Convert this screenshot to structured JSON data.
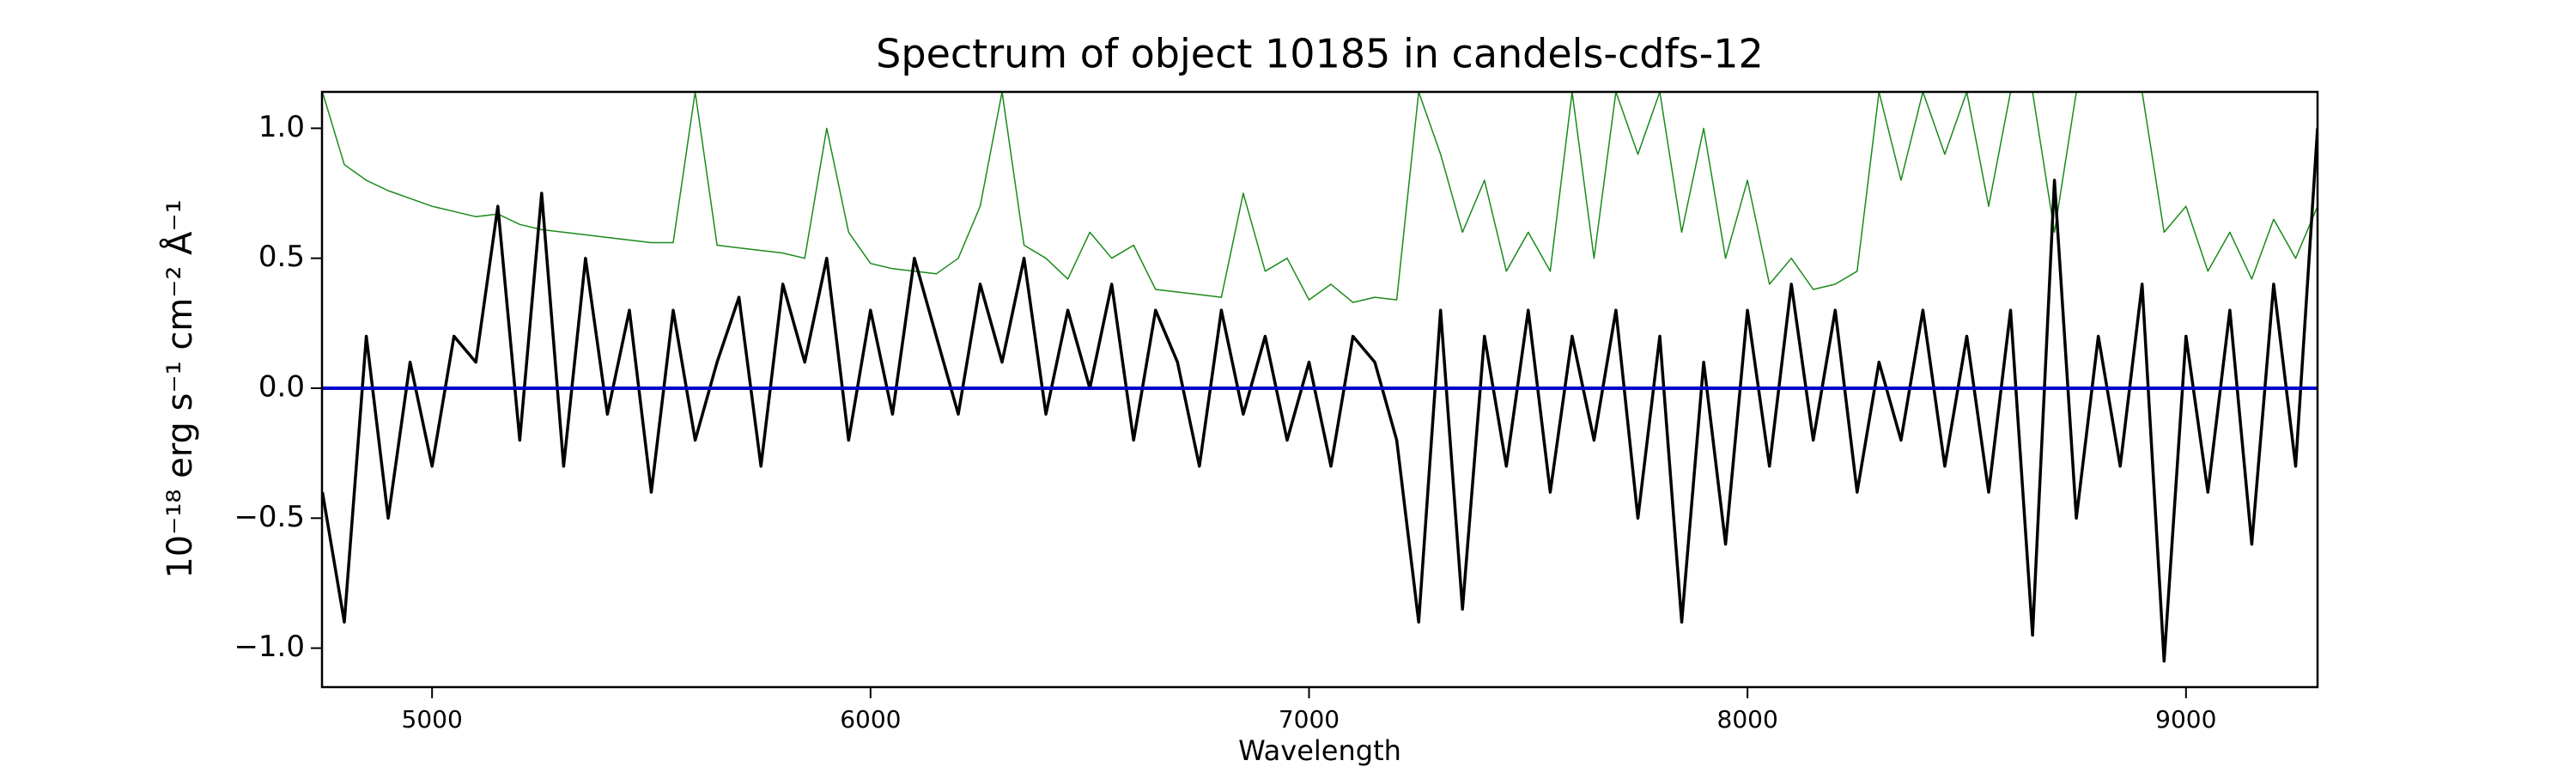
{
  "chart_data": {
    "type": "line",
    "title": "Spectrum of object 10185 in candels-cdfs-12",
    "xlabel": "Wavelength",
    "ylabel": "10⁻¹⁸ erg s⁻¹ cm⁻² Å⁻¹",
    "xlim": [
      4749,
      9300
    ],
    "ylim": [
      -1.15,
      1.14
    ],
    "xticks": [
      5000,
      6000,
      7000,
      8000,
      9000
    ],
    "yticks": [
      {
        "value": -1.0,
        "label": "−1.0"
      },
      {
        "value": -0.5,
        "label": "−0.5"
      },
      {
        "value": 0,
        "label": "0.0"
      },
      {
        "value": 0.5,
        "label": "0.5"
      },
      {
        "value": 1.0,
        "label": "1.0"
      }
    ],
    "x": [
      4750,
      4800,
      4850,
      4900,
      4950,
      5000,
      5050,
      5100,
      5150,
      5200,
      5250,
      5300,
      5350,
      5400,
      5450,
      5500,
      5550,
      5600,
      5650,
      5700,
      5750,
      5800,
      5850,
      5900,
      5950,
      6000,
      6050,
      6100,
      6150,
      6200,
      6250,
      6300,
      6350,
      6400,
      6450,
      6500,
      6550,
      6600,
      6650,
      6700,
      6750,
      6800,
      6850,
      6900,
      6950,
      7000,
      7050,
      7100,
      7150,
      7200,
      7250,
      7300,
      7350,
      7400,
      7450,
      7500,
      7550,
      7600,
      7650,
      7700,
      7750,
      7800,
      7850,
      7900,
      7950,
      8000,
      8050,
      8100,
      8150,
      8200,
      8250,
      8300,
      8350,
      8400,
      8450,
      8500,
      8550,
      8600,
      8650,
      8700,
      8750,
      8800,
      8850,
      8900,
      8950,
      9000,
      9050,
      9100,
      9150,
      9200,
      9250,
      9300
    ],
    "series": [
      {
        "color": "#1a8a1a",
        "width": 1.5,
        "values": [
          1.14,
          0.86,
          0.8,
          0.76,
          0.73,
          0.7,
          0.68,
          0.66,
          0.67,
          0.63,
          0.61,
          0.6,
          0.59,
          0.58,
          0.57,
          0.56,
          0.56,
          1.14,
          0.55,
          0.54,
          0.53,
          0.52,
          0.5,
          1.0,
          0.6,
          0.48,
          0.46,
          0.45,
          0.44,
          0.5,
          0.7,
          1.14,
          0.55,
          0.5,
          0.42,
          0.6,
          0.5,
          0.55,
          0.38,
          0.37,
          0.36,
          0.35,
          0.75,
          0.45,
          0.5,
          0.34,
          0.4,
          0.33,
          0.35,
          0.34,
          1.14,
          0.9,
          0.6,
          0.8,
          0.45,
          0.6,
          0.45,
          1.14,
          0.5,
          1.14,
          0.9,
          1.14,
          0.6,
          1.0,
          0.5,
          0.8,
          0.4,
          0.5,
          0.38,
          0.4,
          0.45,
          1.14,
          0.8,
          1.14,
          0.9,
          1.14,
          0.7,
          1.14,
          1.14,
          0.6,
          1.14,
          1.14,
          1.14,
          1.14,
          0.6,
          0.7,
          0.45,
          0.6,
          0.42,
          0.65,
          0.5,
          0.7
        ]
      },
      {
        "color": "#000000",
        "width": 3.5,
        "values": [
          -0.4,
          -0.9,
          0.2,
          -0.5,
          0.1,
          -0.3,
          0.2,
          0.1,
          0.7,
          -0.2,
          0.75,
          -0.3,
          0.5,
          -0.1,
          0.3,
          -0.4,
          0.3,
          -0.2,
          0.1,
          0.35,
          -0.3,
          0.4,
          0.1,
          0.5,
          -0.2,
          0.3,
          -0.1,
          0.5,
          0.2,
          -0.1,
          0.4,
          0.1,
          0.5,
          -0.1,
          0.3,
          0.0,
          0.4,
          -0.2,
          0.3,
          0.1,
          -0.3,
          0.3,
          -0.1,
          0.2,
          -0.2,
          0.1,
          -0.3,
          0.2,
          0.1,
          -0.2,
          -0.9,
          0.3,
          -0.85,
          0.2,
          -0.3,
          0.3,
          -0.4,
          0.2,
          -0.2,
          0.3,
          -0.5,
          0.2,
          -0.9,
          0.1,
          -0.6,
          0.3,
          -0.3,
          0.4,
          -0.2,
          0.3,
          -0.4,
          0.1,
          -0.2,
          0.3,
          -0.3,
          0.2,
          -0.4,
          0.3,
          -0.95,
          0.8,
          -0.5,
          0.2,
          -0.3,
          0.4,
          -1.05,
          0.2,
          -0.4,
          0.3,
          -0.6,
          0.4,
          -0.3,
          1.0
        ]
      },
      {
        "color": "#0000cc",
        "width": 4,
        "x": [
          4749,
          9300
        ],
        "values": [
          0,
          0
        ]
      }
    ]
  }
}
